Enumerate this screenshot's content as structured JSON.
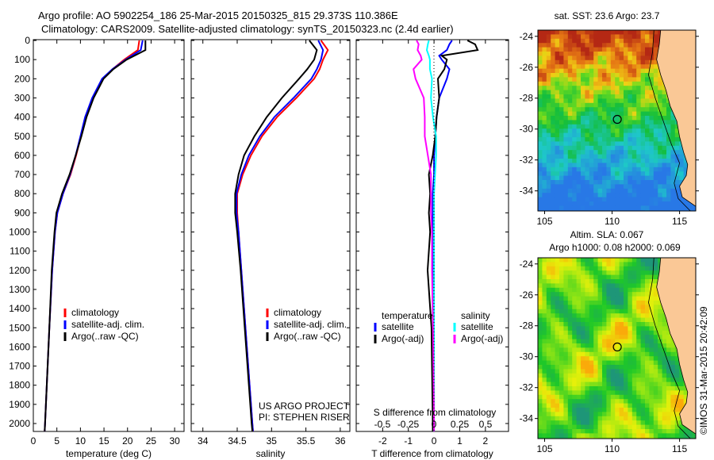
{
  "title": {
    "line1": "Argo profile: AO 5902254_186 25-Mar-2015 20150325_815 29.373S 110.386E",
    "line2": "Climatology: CARS2009. Satellite-adjusted climatology: synTS_20150323.nc (2.4d earlier)"
  },
  "credit": "©IMOS 31-Mar-2015 20:42:09",
  "chart_data": [
    {
      "type": "line",
      "name": "temperature-profile",
      "xlabel": "temperature (deg C)",
      "xlim": [
        0,
        32
      ],
      "xticks": [
        0,
        5,
        10,
        15,
        20,
        25,
        30
      ],
      "ylim": [
        2050,
        0
      ],
      "yticks": [
        0,
        100,
        200,
        300,
        400,
        500,
        600,
        700,
        800,
        900,
        1000,
        1100,
        1200,
        1300,
        1400,
        1500,
        1600,
        1700,
        1800,
        1900,
        2000
      ],
      "depth": [
        0,
        50,
        100,
        150,
        200,
        300,
        400,
        500,
        600,
        700,
        800,
        900,
        1000,
        1200,
        1500,
        2000,
        2040
      ],
      "series": [
        {
          "name": "climatology",
          "color": "#ff0000",
          "values": [
            22.5,
            22.2,
            19.3,
            16.8,
            14.8,
            12.6,
            11.2,
            10.1,
            9.1,
            7.9,
            6.3,
            5.1,
            4.6,
            4.0,
            3.4,
            2.5,
            2.4
          ]
        },
        {
          "name": "satellite-adj. clim.",
          "color": "#0000ff",
          "values": [
            23.2,
            22.8,
            19.6,
            16.8,
            14.6,
            12.5,
            11.0,
            10.0,
            9.0,
            7.8,
            6.3,
            5.1,
            4.6,
            4.0,
            3.4,
            2.5,
            2.4
          ]
        },
        {
          "name": "Argo(..raw -QC)",
          "color": "#000000",
          "values": [
            23.8,
            23.8,
            19.8,
            17.0,
            14.9,
            12.8,
            11.3,
            10.2,
            9.0,
            7.7,
            6.1,
            4.9,
            4.5,
            3.9,
            3.4,
            2.5,
            2.4
          ]
        }
      ],
      "legend": [
        "climatology",
        "satellite-adj. clim.",
        "Argo(..raw -QC)"
      ]
    },
    {
      "type": "line",
      "name": "salinity-profile",
      "xlabel": "salinity",
      "xlim": [
        33.83,
        36.14
      ],
      "xticks": [
        34,
        34.5,
        35,
        35.5,
        36
      ],
      "ylim": [
        2050,
        0
      ],
      "depth": [
        0,
        50,
        100,
        150,
        200,
        300,
        400,
        500,
        600,
        700,
        800,
        900,
        1000,
        1200,
        1500,
        2000,
        2040
      ],
      "series": [
        {
          "name": "climatology",
          "color": "#ff0000",
          "values": [
            35.72,
            35.82,
            35.75,
            35.7,
            35.62,
            35.36,
            35.08,
            34.86,
            34.7,
            34.58,
            34.5,
            34.5,
            34.52,
            34.56,
            34.62,
            34.72,
            34.73
          ]
        },
        {
          "name": "satellite-adj. clim.",
          "color": "#0000ff",
          "values": [
            35.68,
            35.75,
            35.72,
            35.66,
            35.58,
            35.32,
            35.04,
            34.83,
            34.67,
            34.56,
            34.49,
            34.49,
            34.52,
            34.56,
            34.62,
            34.72,
            34.73
          ]
        },
        {
          "name": "Argo(..raw -QC)",
          "color": "#000000",
          "values": [
            35.55,
            35.66,
            35.62,
            35.52,
            35.4,
            35.15,
            34.93,
            34.75,
            34.6,
            34.52,
            34.47,
            34.47,
            34.5,
            34.55,
            34.61,
            34.71,
            34.72
          ]
        }
      ],
      "legend": [
        "climatology",
        "satellite-adj. clim.",
        "Argo(..raw -QC)"
      ],
      "annotation": [
        "US ARGO PROJECT",
        "PI: STEPHEN RISER"
      ]
    },
    {
      "type": "line",
      "name": "difference-profile",
      "xlabel": "T difference from climatology",
      "xlabel_top": "S difference from climatology",
      "xlim": [
        -3.03,
        2.9
      ],
      "xticks": [
        -2,
        -1,
        0,
        1,
        2
      ],
      "xticks_top": [
        -0.5,
        -0.25,
        0,
        0.25,
        0.5
      ],
      "ylim": [
        2050,
        0
      ],
      "depth": [
        0,
        20,
        50,
        80,
        100,
        150,
        200,
        300,
        400,
        500,
        600,
        700,
        800,
        900,
        1000,
        1200,
        1500,
        2000,
        2040
      ],
      "series": [
        {
          "name": "temperature satellite",
          "color": "#0000ff",
          "values": [
            0.7,
            0.6,
            0.5,
            0.2,
            0.3,
            0.6,
            0.5,
            0.2,
            0.1,
            0.05,
            0,
            0,
            -0.05,
            -0.05,
            -0.05,
            -0.05,
            -0.03,
            -0.02,
            -0.02
          ]
        },
        {
          "name": "temperature Argo(-adj)",
          "color": "#000000",
          "values": [
            1.3,
            1.6,
            1.7,
            0.3,
            0.5,
            0.4,
            0.15,
            0.2,
            0.1,
            0.05,
            -0.05,
            -0.2,
            -0.15,
            -0.2,
            -0.15,
            -0.25,
            -0.1,
            -0.05,
            -0.05
          ]
        },
        {
          "name": "salinity satellite",
          "color": "#00ffff",
          "values": [
            -0.05,
            -0.06,
            -0.07,
            -0.05,
            -0.04,
            -0.04,
            -0.02,
            -0.03,
            -0.01,
            0.02,
            0.02,
            0.01,
            0,
            0,
            0,
            0,
            0,
            0,
            0
          ]
        },
        {
          "name": "salinity Argo(-adj)",
          "color": "#ff00ff",
          "values": [
            -0.17,
            -0.15,
            -0.16,
            -0.13,
            -0.12,
            -0.2,
            -0.18,
            -0.1,
            -0.09,
            -0.09,
            -0.06,
            -0.03,
            -0.03,
            -0.03,
            -0.02,
            -0.02,
            -0.01,
            0,
            0
          ]
        }
      ],
      "legend_headers": [
        "temperature",
        "salinity"
      ],
      "legend": [
        "satellite",
        "Argo(-adj)",
        "satellite",
        "Argo(-adj)"
      ]
    },
    {
      "type": "heatmap",
      "name": "sst-map",
      "title": "sat. SST: 23.6 Argo: 23.7",
      "xlim": [
        104.5,
        116.2
      ],
      "ylim": [
        -35.3,
        -23.6
      ],
      "xticks": [
        105,
        110,
        115
      ],
      "yticks": [
        -24,
        -26,
        -28,
        -30,
        -32,
        -34
      ],
      "marker": [
        110.386,
        -29.373
      ]
    },
    {
      "type": "heatmap",
      "name": "sla-map",
      "title": "Altim. SLA: 0.067",
      "subtitle": "Argo h1000: 0.08 h2000: 0.069",
      "xlim": [
        104.5,
        116.2
      ],
      "ylim": [
        -35.3,
        -23.6
      ],
      "xticks": [
        105,
        110,
        115
      ],
      "yticks": [
        -24,
        -26,
        -28,
        -30,
        -32,
        -34
      ],
      "marker": [
        110.386,
        -29.373
      ]
    }
  ]
}
